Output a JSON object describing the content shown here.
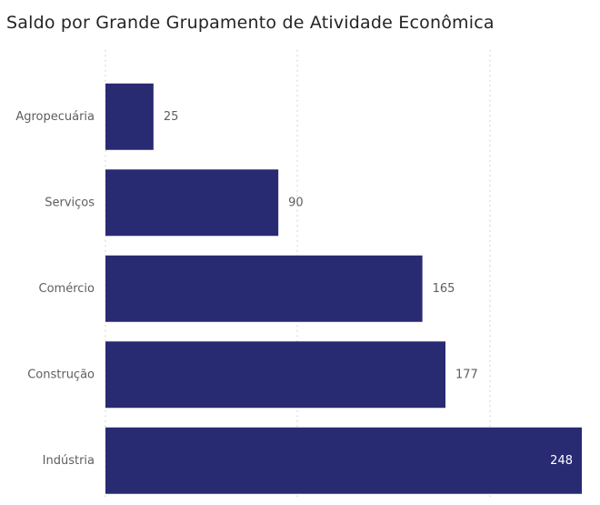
{
  "chart_data": {
    "type": "bar",
    "orientation": "horizontal",
    "title": "Saldo por Grande Grupamento de Atividade Econômica",
    "categories": [
      "Agropecuária",
      "Serviços",
      "Comércio",
      "Construção",
      "Indústria"
    ],
    "values": [
      25,
      90,
      165,
      177,
      248
    ],
    "value_labels": [
      "25",
      "90",
      "165",
      "177",
      "248"
    ],
    "xlim": [
      0,
      248
    ],
    "grid": true,
    "legend": "none",
    "colors": {
      "bar": "#282a72",
      "label_text": "#605e5c",
      "value_label_inside": "#ffffff",
      "gridline": "#c8c8c8",
      "title": "#252423"
    }
  }
}
